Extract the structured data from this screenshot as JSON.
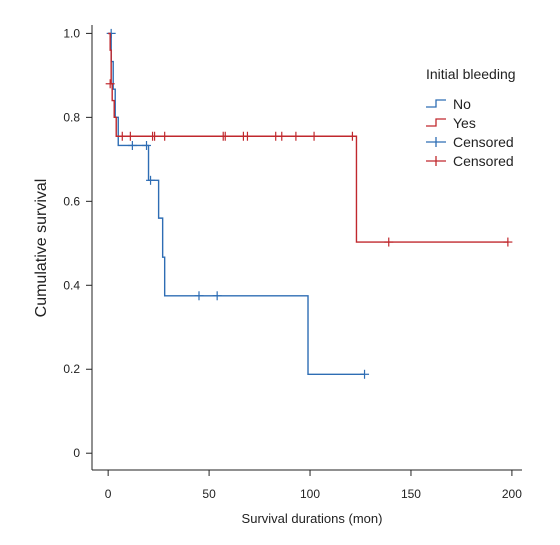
{
  "chart_data": {
    "type": "line",
    "title": "",
    "xlabel": "Survival durations (mon)",
    "ylabel": "Cumulative survival",
    "xlim": [
      -8,
      205
    ],
    "ylim": [
      -0.04,
      1.02
    ],
    "x_ticks": [
      0,
      50,
      100,
      150,
      200
    ],
    "x_tick_labels": [
      "0",
      "50",
      "100",
      "150",
      "200"
    ],
    "y_ticks": [
      0,
      0.2,
      0.4,
      0.6,
      0.8,
      1.0
    ],
    "y_tick_labels": [
      "0",
      "0.2",
      "0.4",
      "0.6",
      "0.8",
      "1.0"
    ],
    "grid": false,
    "legend": {
      "title": "Initial bleeding",
      "position": "top-right",
      "entries": [
        {
          "label": "No",
          "kind": "step",
          "color": "#2e6db4"
        },
        {
          "label": "Yes",
          "kind": "step",
          "color": "#c0282d"
        },
        {
          "label": "Censored",
          "kind": "censor",
          "color": "#2e6db4"
        },
        {
          "label": "Censored",
          "kind": "censor",
          "color": "#c0282d"
        }
      ]
    },
    "series": [
      {
        "name": "No",
        "color": "#2e6db4",
        "steps": [
          [
            0,
            1.0
          ],
          [
            1.5,
            0.933
          ],
          [
            2.5,
            0.867
          ],
          [
            3.5,
            0.8
          ],
          [
            5,
            0.733
          ],
          [
            20,
            0.65
          ],
          [
            25,
            0.56
          ],
          [
            27,
            0.467
          ],
          [
            28,
            0.375
          ],
          [
            99,
            0.188
          ],
          [
            127,
            0.188
          ]
        ],
        "censored": [
          [
            1.5,
            1.0
          ],
          [
            12,
            0.733
          ],
          [
            19,
            0.733
          ],
          [
            21,
            0.65
          ],
          [
            45,
            0.375
          ],
          [
            54,
            0.375
          ],
          [
            127,
            0.188
          ]
        ]
      },
      {
        "name": "Yes",
        "color": "#c0282d",
        "steps": [
          [
            0,
            1.0
          ],
          [
            1,
            0.96
          ],
          [
            1.5,
            0.88
          ],
          [
            2,
            0.84
          ],
          [
            3,
            0.8
          ],
          [
            4,
            0.755
          ],
          [
            123,
            0.503
          ],
          [
            198,
            0.503
          ]
        ],
        "censored": [
          [
            1,
            0.88
          ],
          [
            7,
            0.755
          ],
          [
            11,
            0.755
          ],
          [
            22,
            0.755
          ],
          [
            23,
            0.755
          ],
          [
            28,
            0.755
          ],
          [
            57,
            0.755
          ],
          [
            58,
            0.755
          ],
          [
            67,
            0.755
          ],
          [
            69,
            0.755
          ],
          [
            83,
            0.755
          ],
          [
            86,
            0.755
          ],
          [
            93,
            0.755
          ],
          [
            102,
            0.755
          ],
          [
            121,
            0.755
          ],
          [
            139,
            0.503
          ],
          [
            198,
            0.503
          ]
        ]
      }
    ]
  }
}
